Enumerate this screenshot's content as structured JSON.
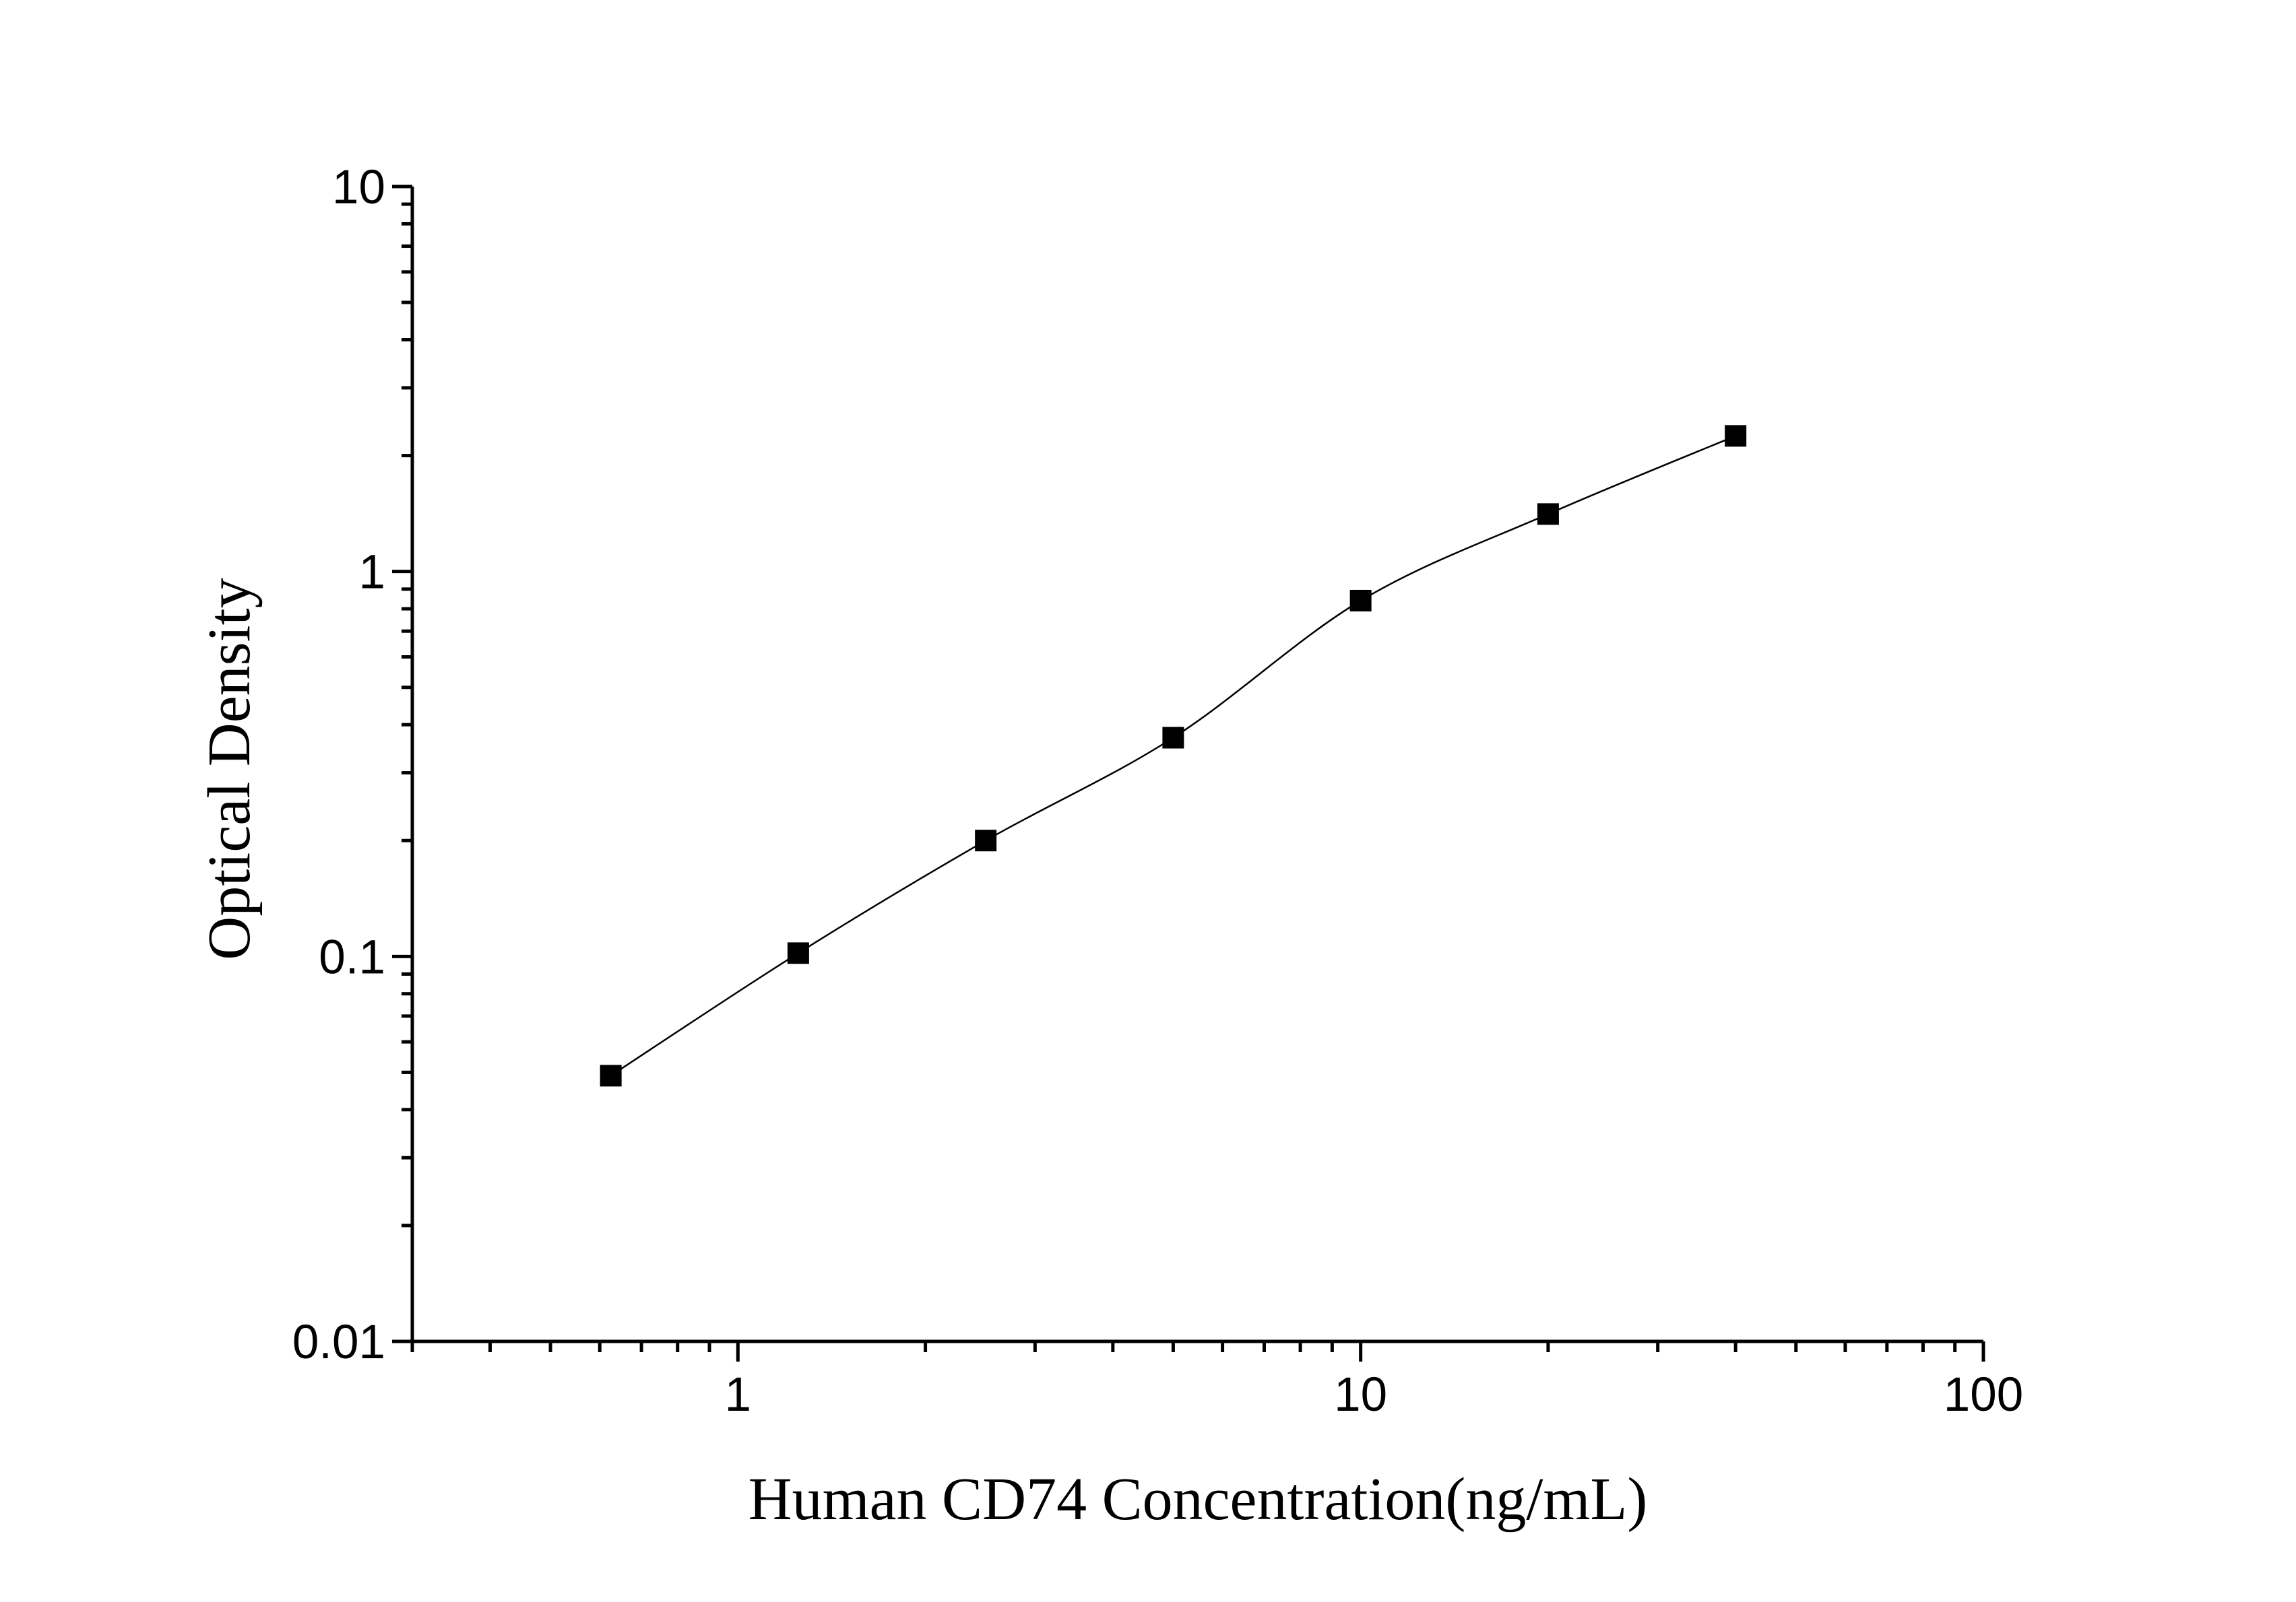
{
  "chart_data": {
    "type": "scatter",
    "xlabel": "Human CD74 Concentration(ng/mL)",
    "ylabel": "Optical Density",
    "x_scale": "log",
    "y_scale": "log",
    "xlim": [
      0.3,
      100
    ],
    "ylim": [
      0.01,
      10
    ],
    "x_ticks": [
      "1",
      "10",
      "100"
    ],
    "y_ticks": [
      "0.01",
      "0.1",
      "1",
      "10"
    ],
    "grid": false,
    "legend": "none",
    "marker": "filled-square",
    "line": "fitted-curve",
    "color": "#000000",
    "series": [
      {
        "x": [
          0.625,
          1.25,
          2.5,
          5,
          10,
          20,
          40
        ],
        "y": [
          0.049,
          0.102,
          0.2,
          0.37,
          0.84,
          1.41,
          2.25
        ]
      }
    ]
  }
}
